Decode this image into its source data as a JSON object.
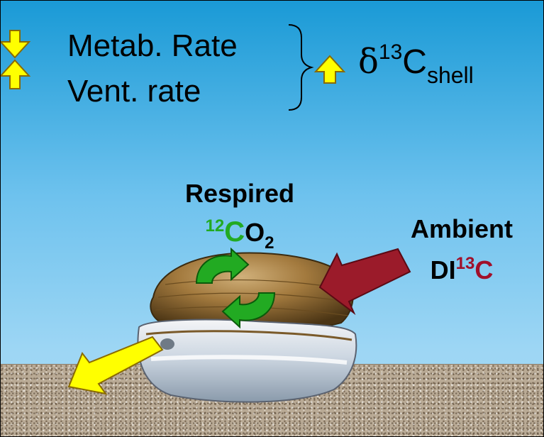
{
  "legend": {
    "item1": {
      "label": "Metab. Rate",
      "direction": "down"
    },
    "item2": {
      "label": "Vent. rate",
      "direction": "up"
    },
    "result": {
      "symbol": "δ",
      "superscript": "13",
      "element": "C",
      "subscript": "shell",
      "direction": "up"
    }
  },
  "respired": {
    "title": "Respired",
    "iso_sup": "12",
    "element": "C",
    "molecule": "O",
    "sub": "2"
  },
  "ambient": {
    "title": "Ambient",
    "prefix": "DI",
    "iso_sup": "13",
    "element": "C"
  },
  "colors": {
    "water_top": "#1a9ad6",
    "water_bottom": "#a8dbf5",
    "arrow_yellow": "#ffff00",
    "ambient_arrow": "#9b1b2a",
    "respired_green": "#22aa22",
    "c13_red": "#a0102a",
    "sediment": "#b9aa95"
  },
  "icons": [
    "down-arrow-icon",
    "up-arrow-icon",
    "brace-icon",
    "cycle-arrows-icon",
    "clam-shell-icon",
    "incoming-arrow-icon",
    "outgoing-arrow-icon"
  ]
}
